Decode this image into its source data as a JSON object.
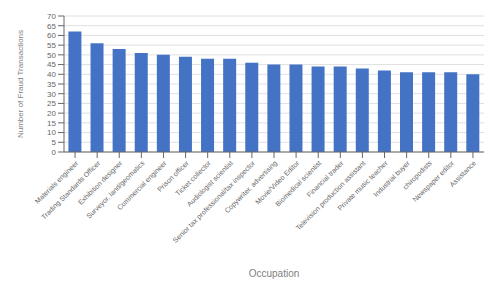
{
  "chart_data": {
    "type": "bar",
    "categories": [
      "Materials engineer",
      "Trading Standards Officer",
      "Exhibition designer",
      "Surveyor, land/geomatics",
      "Commercial engineer",
      "Prison officer",
      "Ticket collector",
      "Audiologist scientist",
      "Senior tax professional/tax inspector",
      "Copywriter, advertising",
      "Movie/Video Editor",
      "Biomedical scientist",
      "Financial trader",
      "Television production assistant",
      "Private music teacher",
      "Industrial buyer",
      "chiropodists",
      "Newspaper editor",
      "Assistance"
    ],
    "values": [
      62,
      56,
      53,
      51,
      50,
      49,
      48,
      48,
      46,
      45,
      45,
      44,
      44,
      43,
      42,
      41,
      41,
      41,
      40
    ],
    "color": "#4472C4",
    "xlabel": "Occupation",
    "ylabel": "Number of Fraud Transactions",
    "ylim": [
      0,
      70
    ],
    "yticks": [
      0,
      5,
      10,
      15,
      20,
      25,
      30,
      35,
      40,
      45,
      50,
      55,
      60,
      65,
      70
    ],
    "grid": true
  }
}
